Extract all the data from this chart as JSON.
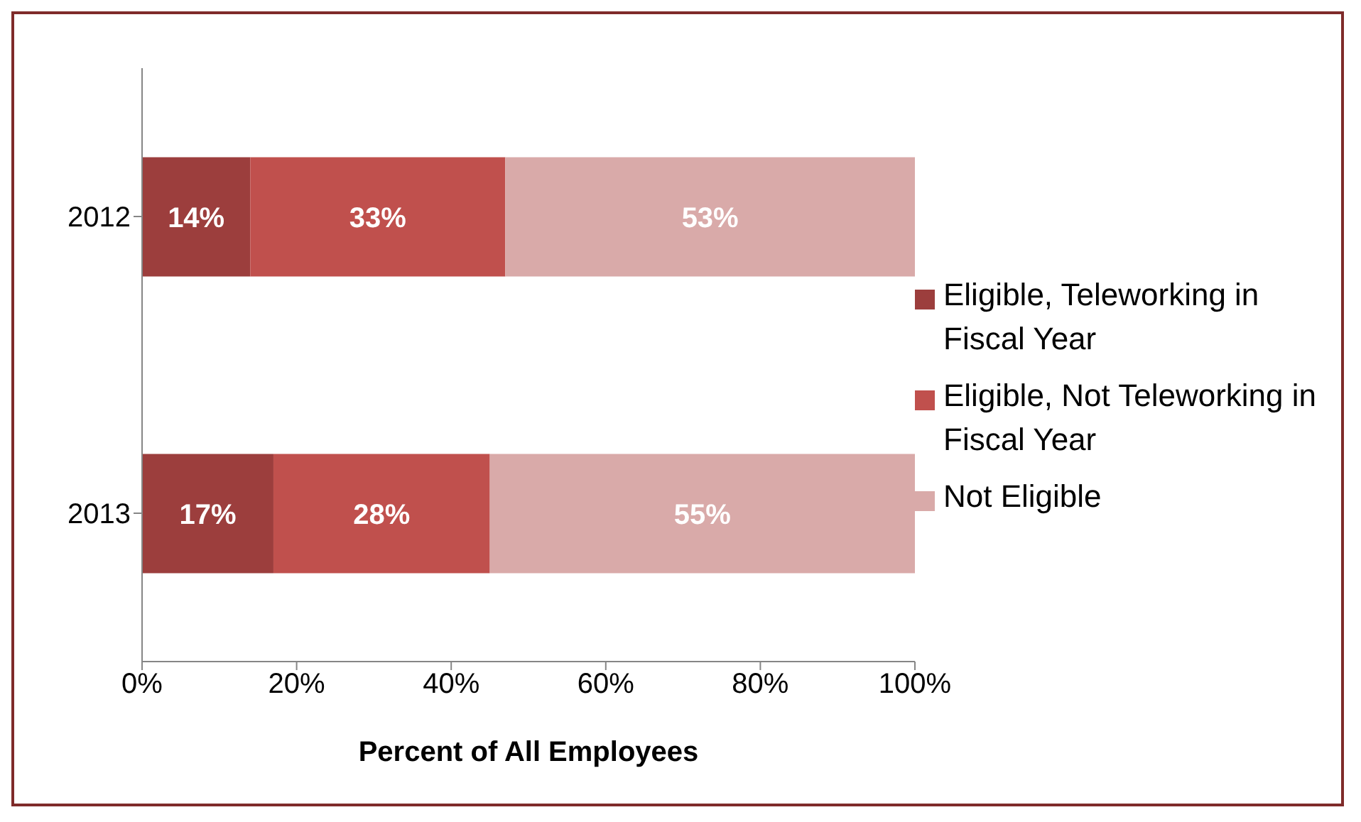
{
  "chart_data": {
    "type": "bar",
    "orientation": "horizontal",
    "stacked": true,
    "xlabel": "Percent of All Employees",
    "categories": [
      "2012",
      "2013"
    ],
    "series": [
      {
        "name": "Eligible, Teleworking in Fiscal Year",
        "color": "#9c3e3d",
        "values": [
          14,
          17
        ],
        "value_labels": [
          "14%",
          "17%"
        ]
      },
      {
        "name": "Eligible, Not Teleworking in Fiscal Year",
        "color": "#c0504d",
        "values": [
          33,
          28
        ],
        "value_labels": [
          "33%",
          "28%"
        ]
      },
      {
        "name": "Not Eligible",
        "color": "#d9aaa9",
        "values": [
          53,
          55
        ],
        "value_labels": [
          "53%",
          "55%"
        ]
      }
    ],
    "xlim": [
      0,
      100
    ],
    "xticks": [
      {
        "value": 0,
        "label": "0%"
      },
      {
        "value": 20,
        "label": "20%"
      },
      {
        "value": 40,
        "label": "40%"
      },
      {
        "value": 60,
        "label": "60%"
      },
      {
        "value": 80,
        "label": "80%"
      },
      {
        "value": 100,
        "label": "100%"
      }
    ],
    "grid": false,
    "legend": "right"
  }
}
